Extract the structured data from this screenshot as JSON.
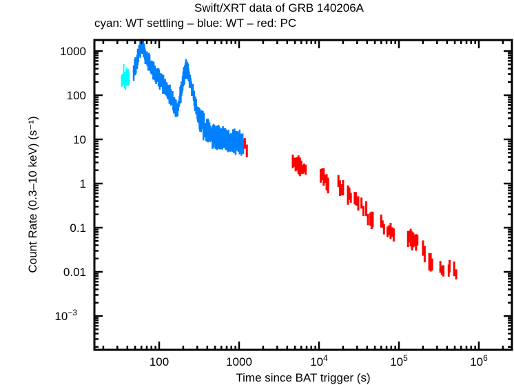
{
  "chart_data": {
    "type": "scatter",
    "title": "Swift/XRT data of GRB 140206A",
    "subtitle": "cyan: WT settling – blue: WT – red: PC",
    "xlabel": "Time since BAT trigger (s)",
    "ylabel": "Count Rate (0.3–10 keV) (s⁻¹)",
    "xscale": "log",
    "yscale": "log",
    "xlim": [
      16,
      2500000
    ],
    "ylim": [
      0.00012,
      1700
    ],
    "x_ticks": [
      {
        "value": 100,
        "label": "100"
      },
      {
        "value": 1000,
        "label": "1000"
      },
      {
        "value": 10000,
        "label": "10",
        "sup": "4"
      },
      {
        "value": 100000,
        "label": "10",
        "sup": "5"
      },
      {
        "value": 1000000,
        "label": "10",
        "sup": "6"
      }
    ],
    "y_ticks": [
      {
        "value": 1000,
        "label": "1000"
      },
      {
        "value": 100,
        "label": "100"
      },
      {
        "value": 10,
        "label": "10"
      },
      {
        "value": 1,
        "label": "1"
      },
      {
        "value": 0.1,
        "label": "0.1"
      },
      {
        "value": 0.01,
        "label": "0.01"
      },
      {
        "value": 0.001,
        "label": "10",
        "sup": "−3"
      }
    ],
    "colors": {
      "wt_settling": "#00ffff",
      "wt": "#0080ff",
      "pc": "#ff0000"
    },
    "series": [
      {
        "name": "WT settling",
        "color_key": "wt_settling",
        "points": [
          [
            34,
            250,
            0.25
          ],
          [
            35,
            220,
            0.3
          ],
          [
            36,
            280,
            0.35
          ],
          [
            37,
            240,
            0.3
          ],
          [
            38,
            200,
            0.3
          ],
          [
            39,
            260,
            0.3
          ],
          [
            40,
            230,
            0.3
          ],
          [
            41,
            270,
            0.3
          ],
          [
            42,
            210,
            0.3
          ]
        ]
      },
      {
        "name": "WT",
        "color_key": "wt",
        "segments": [
          [
            [
              48,
              330
            ],
            [
              52,
              550
            ],
            [
              56,
              1000
            ],
            [
              60,
              1350
            ],
            [
              63,
              1200
            ],
            [
              67,
              800
            ],
            [
              72,
              600
            ],
            [
              80,
              420
            ],
            [
              90,
              300
            ],
            [
              100,
              230
            ],
            [
              115,
              170
            ],
            [
              130,
              120
            ],
            [
              145,
              80
            ],
            [
              160,
              55
            ],
            [
              170,
              45
            ],
            [
              180,
              80
            ],
            [
              190,
              130
            ],
            [
              200,
              230
            ],
            [
              210,
              330
            ],
            [
              220,
              420
            ],
            [
              230,
              330
            ],
            [
              240,
              230
            ],
            [
              260,
              130
            ],
            [
              280,
              70
            ],
            [
              300,
              40
            ],
            [
              330,
              25
            ],
            [
              370,
              18
            ],
            [
              420,
              14
            ],
            [
              480,
              12
            ],
            [
              550,
              11
            ],
            [
              650,
              10
            ],
            [
              750,
              9
            ],
            [
              850,
              9
            ],
            [
              950,
              8.5
            ],
            [
              1050,
              8
            ],
            [
              1150,
              7.5
            ]
          ]
        ],
        "spread": 0.18
      },
      {
        "name": "PC",
        "color_key": "pc",
        "clusters": [
          {
            "t": [
              1180,
              1250
            ],
            "r": [
              9,
              4.5
            ]
          },
          {
            "t": [
              4700,
              6800
            ],
            "r": [
              3.2,
              2.0
            ]
          },
          {
            "t": [
              10500,
              13000
            ],
            "r": [
              1.5,
              1.0
            ]
          },
          {
            "t": [
              17500,
              20000
            ],
            "r": [
              0.95,
              0.75
            ]
          },
          {
            "t": [
              23000,
              25000
            ],
            "r": [
              0.6,
              0.45
            ]
          },
          {
            "t": [
              28000,
              31000
            ],
            "r": [
              0.45,
              0.35
            ]
          },
          {
            "t": [
              34000,
              36000
            ],
            "r": [
              0.3,
              0.22
            ]
          },
          {
            "t": [
              39000,
              41000
            ],
            "r": [
              0.25,
              0.18
            ]
          },
          {
            "t": [
              44000,
              47000
            ],
            "r": [
              0.18,
              0.14
            ]
          },
          {
            "t": [
              60000,
              65000
            ],
            "r": [
              0.14,
              0.11
            ]
          },
          {
            "t": [
              72000,
              86000
            ],
            "r": [
              0.09,
              0.07
            ]
          },
          {
            "t": [
              130000,
              170000
            ],
            "r": [
              0.06,
              0.045
            ]
          },
          {
            "t": [
              200000,
              210000
            ],
            "r": [
              0.035,
              0.03
            ]
          },
          {
            "t": [
              240000,
              260000
            ],
            "r": [
              0.018,
              0.015
            ]
          },
          {
            "t": [
              330000,
              360000
            ],
            "r": [
              0.012,
              0.011
            ]
          },
          {
            "t": [
              420000,
              430000
            ],
            "r": [
              0.012,
              0.011
            ]
          },
          {
            "t": [
              490000,
              520000
            ],
            "r": [
              0.012,
              0.01
            ]
          }
        ],
        "spread": 0.25
      }
    ]
  }
}
